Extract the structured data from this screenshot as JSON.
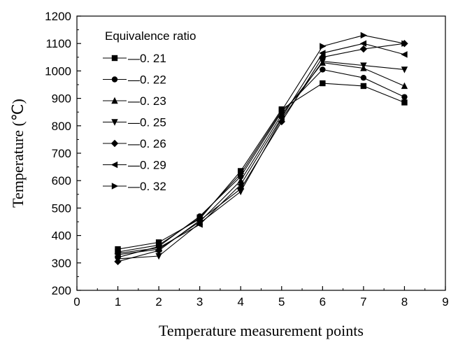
{
  "chart_data": {
    "type": "line",
    "xlabel": "Temperature measurement points",
    "ylabel": "Temperature (℃)",
    "xlim": [
      0,
      9
    ],
    "ylim": [
      200,
      1200
    ],
    "xticks": [
      "0",
      "1",
      "2",
      "3",
      "4",
      "5",
      "6",
      "7",
      "8",
      "9"
    ],
    "yticks": [
      "200",
      "300",
      "400",
      "500",
      "600",
      "700",
      "800",
      "900",
      "1000",
      "1100",
      "1200"
    ],
    "grid": false,
    "legend": {
      "title": "Equivalence ratio",
      "position": "top-left"
    },
    "x": [
      1,
      2,
      3,
      4,
      5,
      6,
      7,
      8
    ],
    "series": [
      {
        "name": "0. 21",
        "marker": "square",
        "values": [
          350,
          375,
          460,
          635,
          860,
          955,
          945,
          885
        ]
      },
      {
        "name": "0. 22",
        "marker": "circle",
        "values": [
          320,
          360,
          470,
          615,
          850,
          1005,
          975,
          905
        ]
      },
      {
        "name": "0. 23",
        "marker": "triangle-up",
        "values": [
          330,
          350,
          450,
          600,
          840,
          1030,
          1010,
          945
        ]
      },
      {
        "name": "0. 25",
        "marker": "triangle-down",
        "values": [
          315,
          325,
          445,
          560,
          825,
          1035,
          1020,
          1005
        ]
      },
      {
        "name": "0. 26",
        "marker": "diamond",
        "values": [
          305,
          345,
          455,
          570,
          815,
          1050,
          1080,
          1100
        ]
      },
      {
        "name": "0. 29",
        "marker": "triangle-left",
        "values": [
          335,
          355,
          440,
          585,
          830,
          1065,
          1100,
          1060
        ]
      },
      {
        "name": "0. 32",
        "marker": "triangle-right",
        "values": [
          340,
          365,
          465,
          625,
          855,
          1090,
          1130,
          1100
        ]
      }
    ]
  }
}
